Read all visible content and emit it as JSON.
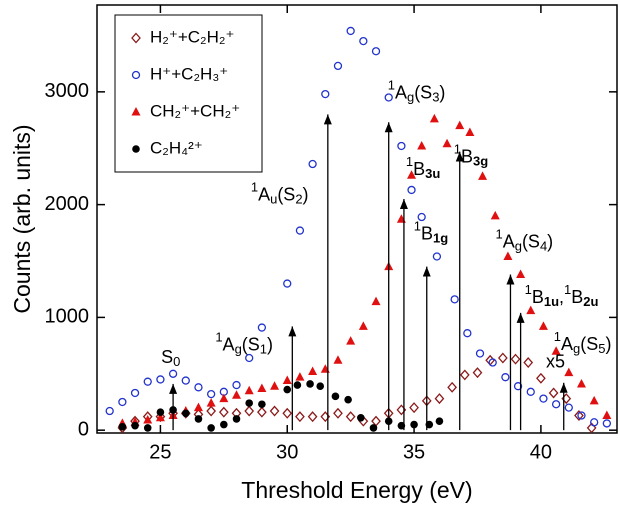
{
  "chart_data": {
    "type": "scatter",
    "xlabel": "Threshold Energy (eV)",
    "ylabel": "Counts (arb. units)",
    "xlim": [
      22.5,
      43
    ],
    "ylim": [
      -25,
      3770
    ],
    "xticks": [
      25,
      30,
      35,
      40
    ],
    "yticks": [
      0,
      1000,
      2000,
      3000
    ],
    "legend": "upper left",
    "series": [
      {
        "name": "H₂⁺+C₂H₂⁺",
        "color": "#8b1a1a",
        "marker": "open-diamond",
        "x": [
          23.5,
          24,
          24.5,
          25,
          25.5,
          26,
          26.5,
          27,
          27.5,
          28,
          28.5,
          29,
          29.5,
          30,
          30.5,
          31,
          31.5,
          32,
          32.5,
          33,
          33.5,
          34,
          34.5,
          35,
          35.5,
          36,
          36.5,
          37,
          37.5,
          38,
          38.5,
          39,
          39.5,
          40,
          40.5,
          41,
          41.5,
          42
        ],
        "values": [
          20,
          80,
          120,
          120,
          150,
          150,
          140,
          170,
          160,
          150,
          170,
          160,
          170,
          150,
          120,
          120,
          120,
          150,
          120,
          80,
          80,
          150,
          180,
          200,
          260,
          280,
          380,
          490,
          510,
          620,
          640,
          630,
          600,
          460,
          330,
          280,
          130,
          20
        ]
      },
      {
        "name": "H⁺+C₂H₃⁺",
        "color": "#2233cc",
        "marker": "open-circle",
        "x": [
          23,
          23.5,
          24,
          24.5,
          25,
          25.5,
          26,
          26.5,
          27,
          27.5,
          28,
          28.5,
          29,
          30,
          30.5,
          31,
          31.5,
          32,
          32.5,
          33,
          33.5,
          34,
          34.5,
          34.9,
          35.3,
          35.9,
          36.6,
          37.1,
          37.6,
          38.1,
          38.6,
          39.1,
          39.6,
          40.1,
          40.6,
          41.1,
          41.6,
          42.1,
          42.6
        ],
        "values": [
          170,
          250,
          330,
          430,
          450,
          500,
          440,
          380,
          320,
          340,
          400,
          640,
          910,
          1300,
          1770,
          2360,
          2980,
          3230,
          3540,
          3450,
          3360,
          2950,
          2520,
          2130,
          1890,
          1540,
          1160,
          860,
          680,
          600,
          470,
          390,
          340,
          280,
          230,
          200,
          130,
          70,
          60
        ]
      },
      {
        "name": "CH₂⁺+CH₂⁺",
        "color": "#e01010",
        "marker": "filled-triangle",
        "x": [
          23.5,
          24,
          24.5,
          25,
          25.5,
          26,
          26.5,
          27,
          27.5,
          28,
          28.5,
          29,
          29.5,
          30,
          30.5,
          31,
          31.5,
          32,
          32.5,
          33,
          33.5,
          34,
          34.5,
          34.9,
          35.3,
          35.8,
          36.3,
          36.8,
          37.2,
          37.7,
          38.2,
          38.7,
          39.2,
          39.6,
          40.1,
          40.6,
          41.1,
          41.6,
          42.1,
          42.6
        ],
        "values": [
          60,
          70,
          90,
          110,
          130,
          170,
          200,
          240,
          280,
          310,
          350,
          370,
          390,
          440,
          470,
          520,
          540,
          620,
          790,
          920,
          1140,
          1450,
          1870,
          2260,
          2520,
          2760,
          2540,
          2700,
          2640,
          2250,
          1900,
          1540,
          1380,
          1060,
          920,
          700,
          510,
          410,
          260,
          130
        ]
      },
      {
        "name": "C₂H₄²⁺",
        "color": "#000000",
        "marker": "filled-circle",
        "x": [
          23.5,
          24,
          24.5,
          25,
          25.5,
          26,
          26.5,
          27,
          27.5,
          28,
          28.5,
          29,
          30,
          30.4,
          30.9,
          31.3,
          31.9,
          32.4,
          32.9,
          33.4,
          34,
          34.5,
          35,
          35.6,
          36
        ],
        "values": [
          30,
          40,
          20,
          160,
          180,
          150,
          100,
          20,
          50,
          100,
          240,
          230,
          360,
          400,
          410,
          390,
          300,
          270,
          110,
          20,
          80,
          40,
          50,
          50,
          80
        ]
      }
    ],
    "annotations": [
      {
        "x": 25.5,
        "y": 490,
        "label": [
          {
            "t": "S"
          },
          {
            "t": "0",
            "s": "sub"
          }
        ]
      },
      {
        "x": 30.2,
        "y": 1000,
        "label": [
          {
            "t": "1",
            "s": "sup"
          },
          {
            "t": "A"
          },
          {
            "t": "g",
            "s": "sub"
          },
          {
            "t": "(S"
          },
          {
            "t": "1",
            "s": "sub"
          },
          {
            "t": ")"
          }
        ]
      },
      {
        "x": 31.6,
        "y": 2880,
        "label": [
          {
            "t": "1",
            "s": "sup"
          },
          {
            "t": "A"
          },
          {
            "t": "u",
            "s": "sub"
          },
          {
            "t": "(S"
          },
          {
            "t": "2",
            "s": "sub"
          },
          {
            "t": ")"
          }
        ]
      },
      {
        "x": 34.0,
        "y": 2810,
        "label": [
          {
            "t": "1",
            "s": "sup"
          },
          {
            "t": "A"
          },
          {
            "t": "g",
            "s": "sub"
          },
          {
            "t": "(S"
          },
          {
            "t": "3",
            "s": "sub"
          },
          {
            "t": ")"
          }
        ]
      },
      {
        "x": 34.6,
        "y": 2130,
        "label": [
          {
            "t": "1",
            "s": "sup"
          },
          {
            "t": "B"
          },
          {
            "t": "3u",
            "s": "sub"
          }
        ]
      },
      {
        "x": 35.5,
        "y": 1530,
        "label": [
          {
            "t": "1",
            "s": "sup"
          },
          {
            "t": "B"
          },
          {
            "t": "1g",
            "s": "sub"
          }
        ]
      },
      {
        "x": 36.8,
        "y": 2550,
        "label": [
          {
            "t": "1",
            "s": "sup"
          },
          {
            "t": "B"
          },
          {
            "t": "3g",
            "s": "sub"
          }
        ]
      },
      {
        "x": 38.8,
        "y": 1460,
        "label": [
          {
            "t": "1",
            "s": "sup"
          },
          {
            "t": "A"
          },
          {
            "t": "g",
            "s": "sub"
          },
          {
            "t": "(S"
          },
          {
            "t": "4",
            "s": "sub"
          },
          {
            "t": ")"
          }
        ]
      },
      {
        "x": 39.2,
        "y": 1120,
        "label": [
          {
            "t": "1",
            "s": "sup"
          },
          {
            "t": "B"
          },
          {
            "t": "1u",
            "s": "sub"
          },
          {
            "t": ","
          },
          {
            "t": "1",
            "s": "sup"
          },
          {
            "t": "B"
          },
          {
            "t": "2u",
            "s": "sub"
          }
        ]
      },
      {
        "x": 40.9,
        "y": 500,
        "label": [
          {
            "t": "1",
            "s": "sup"
          },
          {
            "t": "A"
          },
          {
            "t": "g",
            "s": "sub"
          },
          {
            "t": "(S"
          },
          {
            "t": "5",
            "s": "sub"
          },
          {
            "t": ")"
          }
        ]
      }
    ],
    "text_annotations": [
      {
        "text": "x5",
        "x": 40.2,
        "y": 600,
        "color": "#8b1a1a"
      }
    ]
  }
}
